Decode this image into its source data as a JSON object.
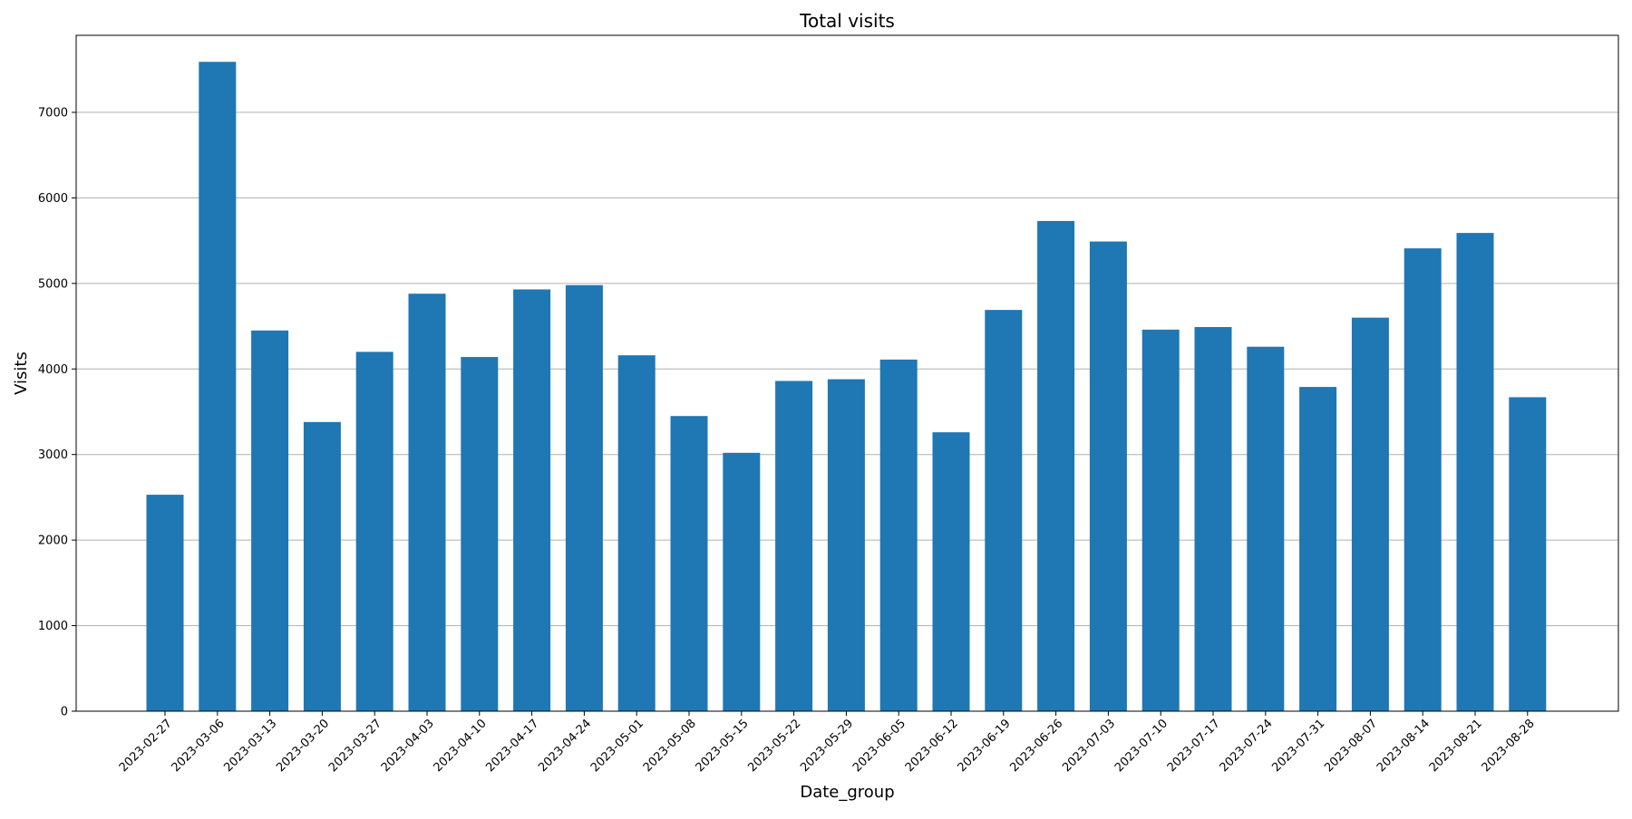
{
  "chart_data": {
    "type": "bar",
    "title": "Total visits",
    "xlabel": "Date_group",
    "ylabel": "Visits",
    "ylim": [
      0,
      7900
    ],
    "yticks": [
      0,
      1000,
      2000,
      3000,
      4000,
      5000,
      6000,
      7000
    ],
    "grid": "horizontal",
    "bar_color": "#1f77b4",
    "categories": [
      "2023-02-27",
      "2023-03-06",
      "2023-03-13",
      "2023-03-20",
      "2023-03-27",
      "2023-04-03",
      "2023-04-10",
      "2023-04-17",
      "2023-04-24",
      "2023-05-01",
      "2023-05-08",
      "2023-05-15",
      "2023-05-22",
      "2023-05-29",
      "2023-06-05",
      "2023-06-12",
      "2023-06-19",
      "2023-06-26",
      "2023-07-03",
      "2023-07-10",
      "2023-07-17",
      "2023-07-24",
      "2023-07-31",
      "2023-08-07",
      "2023-08-14",
      "2023-08-21",
      "2023-08-28"
    ],
    "values": [
      2530,
      7590,
      4450,
      3380,
      4200,
      4880,
      4140,
      4930,
      4980,
      4160,
      3450,
      3020,
      3860,
      3880,
      4110,
      3260,
      4690,
      5730,
      5490,
      4460,
      4490,
      4260,
      3790,
      4600,
      5410,
      5590,
      3670
    ]
  }
}
